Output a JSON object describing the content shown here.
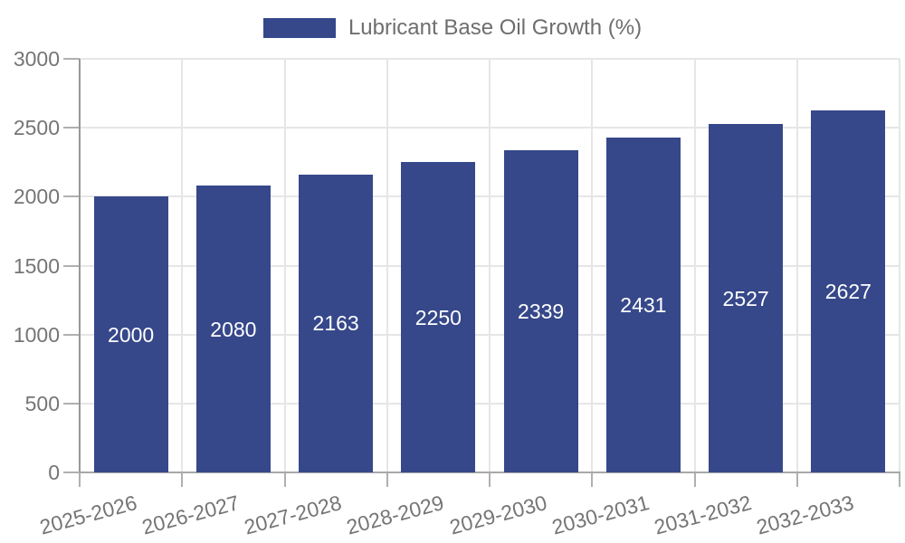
{
  "legend": {
    "label": "Lubricant Base Oil Growth (%)"
  },
  "chart_data": {
    "type": "bar",
    "title": "Lubricant Base Oil Growth (%)",
    "series_name": "Lubricant Base Oil Growth (%)",
    "categories": [
      "2025-2026",
      "2026-2027",
      "2027-2028",
      "2028-2029",
      "2029-2030",
      "2030-2031",
      "2031-2032",
      "2032-2033"
    ],
    "values": [
      2000,
      2080,
      2163,
      2250,
      2339,
      2431,
      2527,
      2627
    ],
    "xlabel": "",
    "ylabel": "",
    "ylim": [
      0,
      3000
    ],
    "yticks": [
      0,
      500,
      1000,
      1500,
      2000,
      2500,
      3000
    ],
    "grid": true,
    "legend_position": "top",
    "bar_color": "#36488a",
    "bar_label_color": "#ffffff",
    "axis_text_color": "#757575"
  }
}
